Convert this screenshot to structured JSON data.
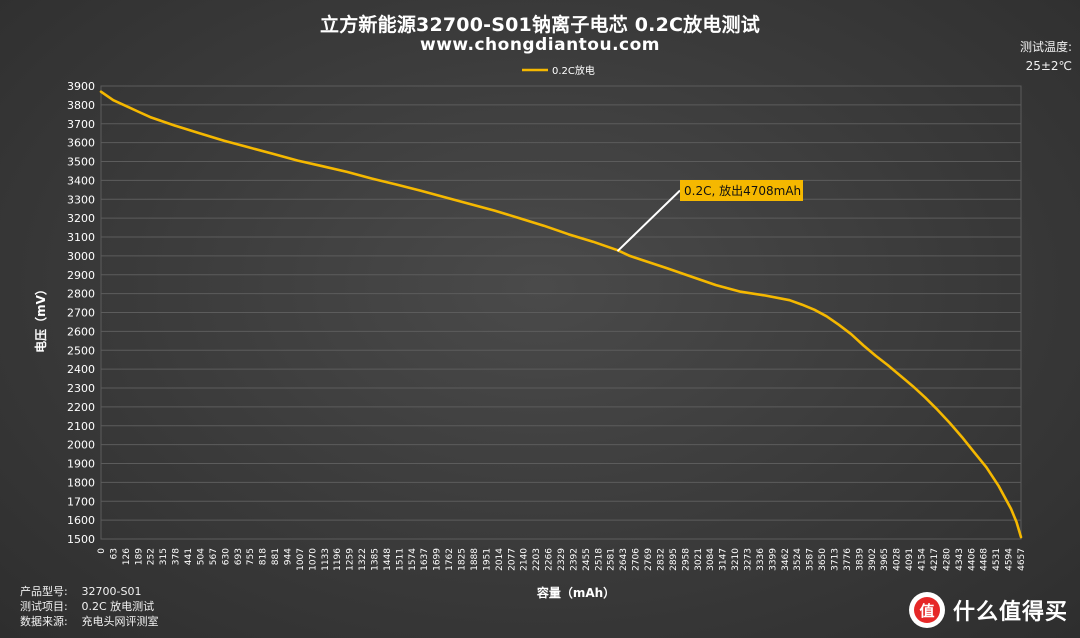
{
  "page": {
    "title": "立方新能源32700-S01钠离子电芯 0.2C放电测试",
    "subtitle": "www.chongdiantou.com",
    "temperature_label": "测试温度:",
    "temperature_value": "25±2℃",
    "info": [
      {
        "key": "产品型号:",
        "value": "32700-S01"
      },
      {
        "key": "测试项目:",
        "value": "0.2C 放电测试"
      },
      {
        "key": "数据来源:",
        "value": "充电头网评测室"
      }
    ],
    "logo_text": "什么值得买",
    "logo_icon": "smzdm-logo-icon"
  },
  "chart_data": {
    "type": "line",
    "title": "立方新能源32700-S01钠离子电芯 0.2C放电测试",
    "xlabel": "容量（mAh）",
    "ylabel": "电压（mV）",
    "ylim": [
      1500,
      3900
    ],
    "yticks": [
      1500,
      1600,
      1700,
      1800,
      1900,
      2000,
      2100,
      2200,
      2300,
      2400,
      2500,
      2600,
      2700,
      2800,
      2900,
      3000,
      3100,
      3200,
      3300,
      3400,
      3500,
      3600,
      3700,
      3800,
      3900
    ],
    "xlim": [
      0,
      4708
    ],
    "xticks": [
      "0",
      "63",
      "126",
      "189",
      "252",
      "315",
      "378",
      "441",
      "504",
      "567",
      "630",
      "693",
      "755",
      "818",
      "881",
      "944",
      "1007",
      "1070",
      "1133",
      "1196",
      "1259",
      "1322",
      "1385",
      "1448",
      "1511",
      "1574",
      "1637",
      "1699",
      "1762",
      "1825",
      "1888",
      "1951",
      "2014",
      "2077",
      "2140",
      "2203",
      "2266",
      "2329",
      "2392",
      "2455",
      "2518",
      "2581",
      "2643",
      "2706",
      "2769",
      "2832",
      "2895",
      "2958",
      "3021",
      "3084",
      "3147",
      "3210",
      "3273",
      "3336",
      "3399",
      "3462",
      "3524",
      "3587",
      "3650",
      "3713",
      "3776",
      "3839",
      "3902",
      "3965",
      "4028",
      "4091",
      "4154",
      "4217",
      "4280",
      "4343",
      "4406",
      "4468",
      "4531",
      "4594",
      "4657"
    ],
    "grid": true,
    "legend": "top-center",
    "colors": {
      "line": "#f5b800",
      "grid": "#5c5c5c",
      "annotation_bg": "#f5b800",
      "annotation_text": "#111111"
    },
    "series": [
      {
        "name": "0.2C放电",
        "x": [
          0,
          63,
          126,
          189,
          252,
          378,
          504,
          630,
          755,
          881,
          1007,
          1133,
          1259,
          1385,
          1511,
          1637,
          1762,
          1888,
          2014,
          2140,
          2266,
          2392,
          2518,
          2643,
          2706,
          2769,
          2895,
          3021,
          3147,
          3273,
          3399,
          3524,
          3587,
          3650,
          3713,
          3776,
          3839,
          3902,
          3965,
          4028,
          4091,
          4154,
          4217,
          4280,
          4343,
          4406,
          4468,
          4531,
          4594,
          4657,
          4685,
          4708
        ],
        "y": [
          3870,
          3825,
          3795,
          3765,
          3735,
          3690,
          3650,
          3610,
          3575,
          3540,
          3505,
          3475,
          3445,
          3410,
          3378,
          3345,
          3310,
          3275,
          3240,
          3200,
          3160,
          3115,
          3075,
          3030,
          3000,
          2978,
          2935,
          2890,
          2845,
          2810,
          2790,
          2765,
          2742,
          2715,
          2680,
          2635,
          2585,
          2525,
          2470,
          2420,
          2365,
          2310,
          2250,
          2185,
          2115,
          2040,
          1960,
          1880,
          1780,
          1660,
          1590,
          1510
        ]
      }
    ],
    "annotation": {
      "text": "0.2C, 放出4708mAh",
      "x": 2643,
      "y": 3025
    }
  }
}
